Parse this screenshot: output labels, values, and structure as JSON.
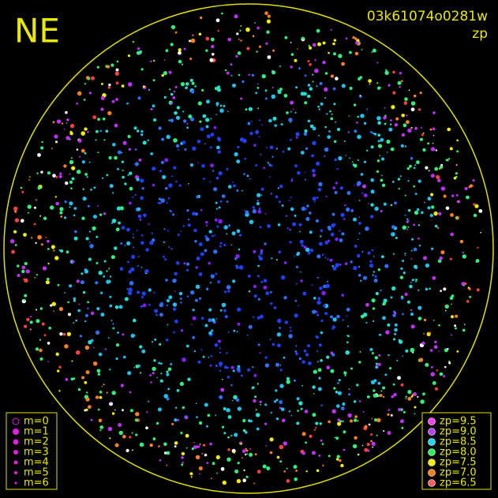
{
  "title": "NE",
  "image_id": "03k61074o0281w",
  "color_key": "zp",
  "magnitude_legend": [
    "m=0",
    "m=1",
    "m=2",
    "m=3",
    "m=4",
    "m=5",
    "m=6"
  ],
  "zp_legend": [
    {
      "label": "zp=9.5",
      "color": "#ff40ff"
    },
    {
      "label": "zp=9.0",
      "color": "#c040ff"
    },
    {
      "label": "zp=8.5",
      "color": "#20d8f0"
    },
    {
      "label": "zp=8.0",
      "color": "#30f060"
    },
    {
      "label": "zp=7.5",
      "color": "#f0f000"
    },
    {
      "label": "zp=7.0",
      "color": "#ff8020"
    },
    {
      "label": "zp=6.5",
      "color": "#ff6060"
    }
  ]
}
